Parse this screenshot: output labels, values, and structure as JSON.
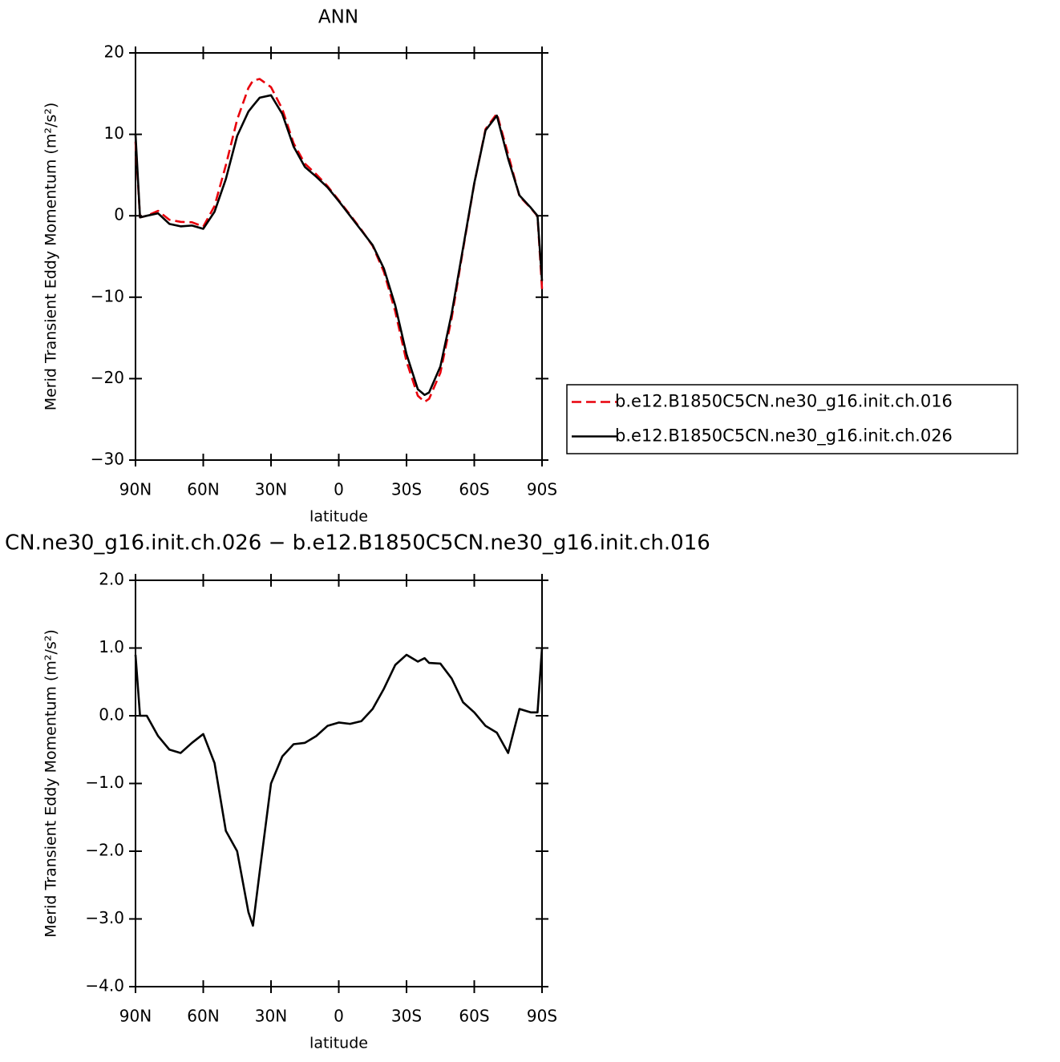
{
  "chart_data": [
    {
      "type": "line",
      "title": "ANN",
      "xlabel": "latitude",
      "ylabel": "Merid Transient Eddy Momentum (m²/s²)",
      "x": [
        90,
        88,
        85,
        80,
        75,
        70,
        65,
        60,
        55,
        50,
        45,
        40,
        38,
        35,
        30,
        25,
        20,
        15,
        10,
        5,
        0,
        -5,
        -10,
        -15,
        -20,
        -25,
        -30,
        -35,
        -38,
        -40,
        -45,
        -50,
        -55,
        -60,
        -65,
        -70,
        -75,
        -80,
        -85,
        -88,
        -90
      ],
      "series": [
        {
          "name": "b.e12.B1850C5CN.ne30_g16.init.ch.016",
          "color": "#e8000b",
          "dash": true,
          "values": [
            9.1,
            -0.2,
            0,
            0.6,
            -0.5,
            -0.75,
            -0.8,
            -1.33,
            1.2,
            6.2,
            11.8,
            15.7,
            16.6,
            16.8,
            15.8,
            13.1,
            8.9,
            6.4,
            5.1,
            3.65,
            1.9,
            0.12,
            -1.72,
            -3.7,
            -6.9,
            -11.75,
            -17.9,
            -22.1,
            -22.85,
            -22.48,
            -19.27,
            -12.55,
            -4.2,
            3.95,
            10.65,
            12.55,
            7.55,
            2.4,
            0.95,
            -0.05,
            -9
          ]
        },
        {
          "name": "b.e12.B1850C5CN.ne30_g16.init.ch.026",
          "color": "#000000",
          "dash": false,
          "values": [
            10,
            -0.2,
            0,
            0.3,
            -1,
            -1.3,
            -1.2,
            -1.6,
            0.5,
            4.5,
            9.8,
            12.8,
            13.5,
            14.5,
            14.8,
            12.5,
            8.5,
            6,
            4.8,
            3.5,
            1.8,
            0,
            -1.8,
            -3.6,
            -6.5,
            -11,
            -17,
            -21.3,
            -22,
            -21.7,
            -18.5,
            -12,
            -4,
            4,
            10.5,
            12.3,
            7,
            2.5,
            1,
            0,
            -8
          ]
        }
      ],
      "xlim": [
        90,
        -90
      ],
      "xticks": [
        {
          "value": 90,
          "label": "90N"
        },
        {
          "value": 60,
          "label": "60N"
        },
        {
          "value": 30,
          "label": "30N"
        },
        0,
        {
          "value": -30,
          "label": "30S"
        },
        {
          "value": -60,
          "label": "60S"
        },
        {
          "value": -90,
          "label": "90S"
        }
      ],
      "ylim": [
        -30,
        20
      ],
      "yticks": [
        {
          "value": -30,
          "label": "−30"
        },
        {
          "value": -20,
          "label": "−20"
        },
        {
          "value": -10,
          "label": "−10"
        },
        0,
        10,
        20
      ],
      "legend": "right"
    },
    {
      "type": "line",
      "title": "CN.ne30_g16.init.ch.026 − b.e12.B1850C5CN.ne30_g16.init.ch.016",
      "xlabel": "latitude",
      "ylabel": "Merid Transient Eddy Momentum (m²/s²)",
      "x": [
        90,
        88,
        85,
        80,
        75,
        70,
        65,
        60,
        55,
        50,
        45,
        40,
        38,
        35,
        30,
        25,
        20,
        15,
        10,
        5,
        0,
        -5,
        -10,
        -15,
        -20,
        -25,
        -30,
        -35,
        -38,
        -40,
        -45,
        -50,
        -55,
        -60,
        -65,
        -70,
        -75,
        -80,
        -85,
        -88,
        -90
      ],
      "series": [
        {
          "color": "#000000",
          "dash": false,
          "values": [
            0.9,
            0,
            0,
            -0.3,
            -0.5,
            -0.55,
            -0.4,
            -0.27,
            -0.7,
            -1.7,
            -2.0,
            -2.9,
            -3.1,
            -2.3,
            -1.0,
            -0.6,
            -0.42,
            -0.4,
            -0.3,
            -0.15,
            -0.1,
            -0.12,
            -0.08,
            0.1,
            0.4,
            0.75,
            0.9,
            0.8,
            0.85,
            0.78,
            0.77,
            0.55,
            0.2,
            0.05,
            -0.15,
            -0.25,
            -0.55,
            0.1,
            0.05,
            0.05,
            1.0
          ]
        }
      ],
      "xlim": [
        90,
        -90
      ],
      "xticks": [
        {
          "value": 90,
          "label": "90N"
        },
        {
          "value": 60,
          "label": "60N"
        },
        {
          "value": 30,
          "label": "30N"
        },
        0,
        {
          "value": -30,
          "label": "30S"
        },
        {
          "value": -60,
          "label": "60S"
        },
        {
          "value": -90,
          "label": "90S"
        }
      ],
      "ylim": [
        -4,
        2
      ],
      "yticks": [
        {
          "value": -4,
          "label": "−4.0"
        },
        {
          "value": -3,
          "label": "−3.0"
        },
        {
          "value": -2,
          "label": "−2.0"
        },
        {
          "value": -1,
          "label": "−1.0"
        },
        {
          "value": 0,
          "label": "0.0"
        },
        {
          "value": 1,
          "label": "1.0"
        },
        {
          "value": 2,
          "label": "2.0"
        }
      ]
    }
  ]
}
